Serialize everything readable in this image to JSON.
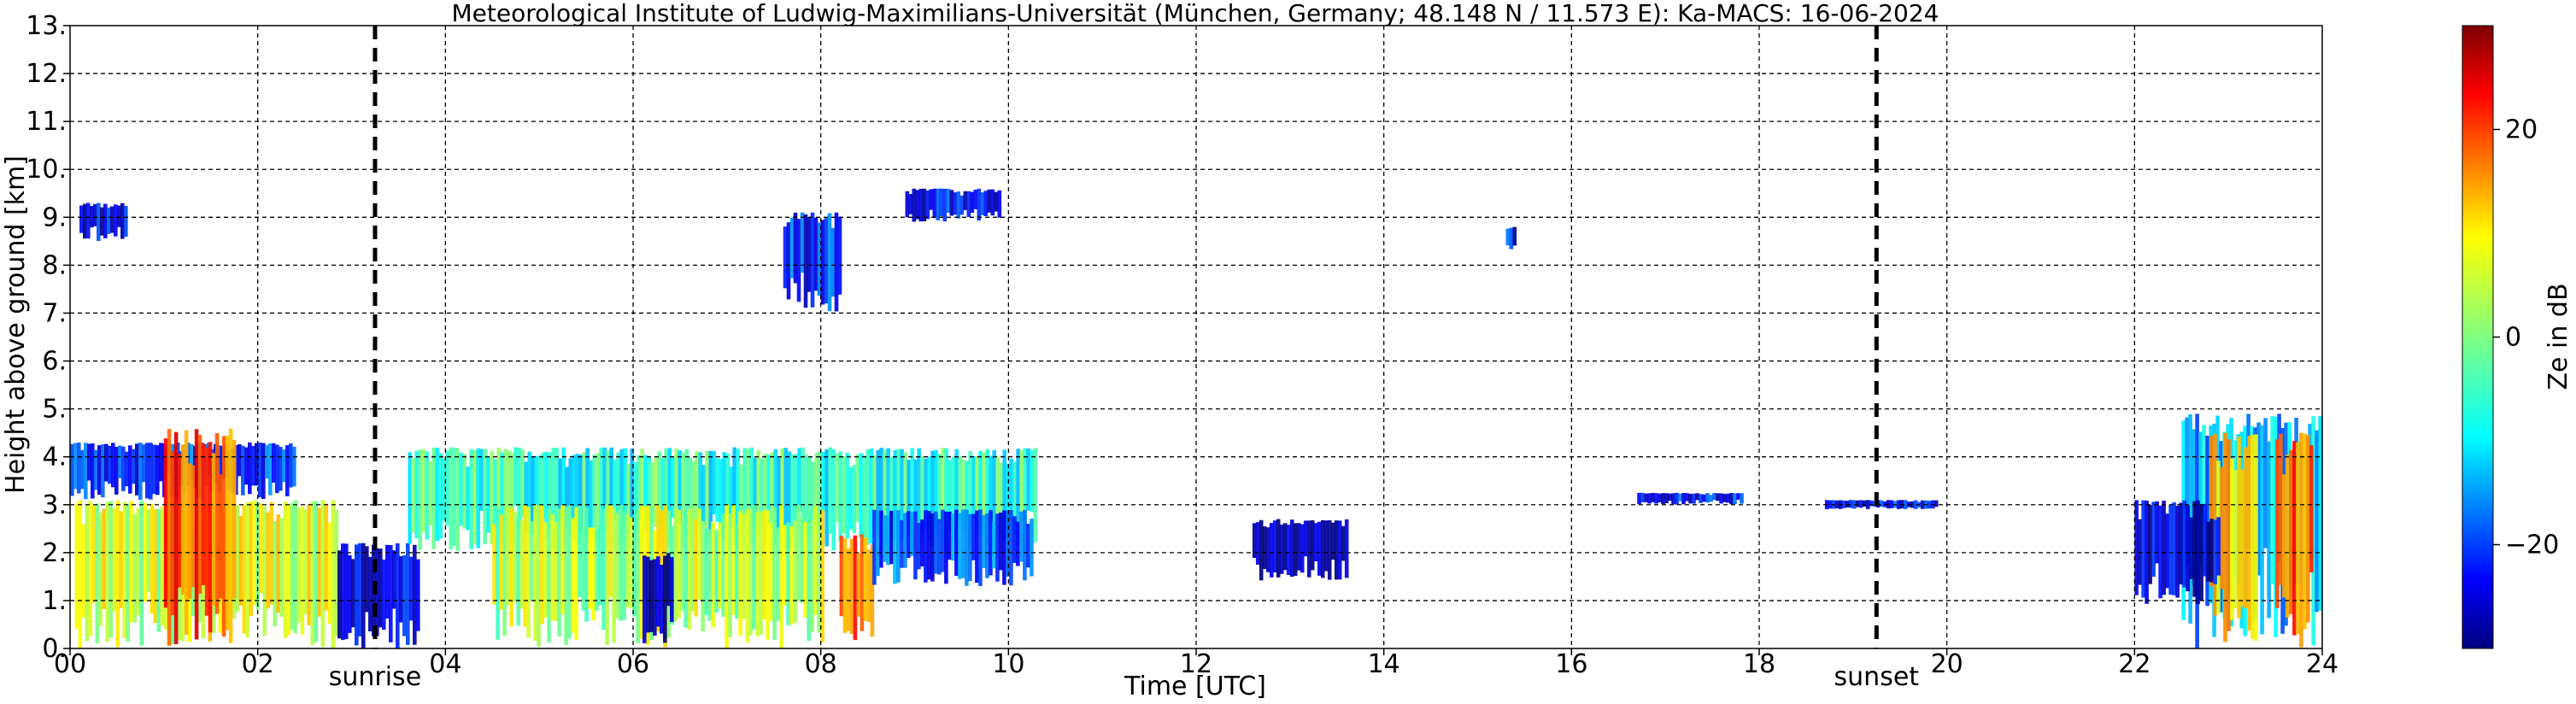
{
  "chart_data": {
    "type": "heatmap",
    "title": "Meteorological Institute of Ludwig-Maximilians-Universität (München, Germany; 48.148 N / 11.573 E):    Ka-MACS: 16-06-2024",
    "xlabel": "Time [UTC]",
    "ylabel": "Height above ground [km]",
    "xlim": [
      0,
      24
    ],
    "ylim": [
      0,
      13
    ],
    "x_ticks": [
      0,
      2,
      4,
      6,
      8,
      10,
      12,
      14,
      16,
      18,
      20,
      22,
      24
    ],
    "x_tick_labels": [
      "00",
      "02",
      "04",
      "06",
      "08",
      "10",
      "12",
      "14",
      "16",
      "18",
      "20",
      "22",
      "24"
    ],
    "y_ticks": [
      0,
      1,
      2,
      3,
      4,
      5,
      6,
      7,
      8,
      9,
      10,
      11,
      12,
      13
    ],
    "y_tick_labels": [
      "0.",
      "1.",
      "2.",
      "3.",
      "4.",
      "5.",
      "6.",
      "7.",
      "8.",
      "9.",
      "10.",
      "11.",
      "12.",
      "13."
    ],
    "grid": true,
    "events": [
      {
        "label": "sunrise",
        "x": 3.25
      },
      {
        "label": "sunset",
        "x": 19.25
      }
    ],
    "colorbar": {
      "label": "Ze in dB",
      "range": [
        -30,
        30
      ],
      "ticks": [
        -20,
        0,
        20
      ],
      "tick_labels": [
        "−20",
        "0",
        "20"
      ],
      "colormap": "jet"
    },
    "echo_regions": [
      {
        "x": [
          0.05,
          2.85
        ],
        "y": [
          0.0,
          3.1
        ],
        "ze": 5
      },
      {
        "x": [
          0.0,
          2.4
        ],
        "y": [
          3.1,
          4.3
        ],
        "ze": -20
      },
      {
        "x": [
          1.0,
          1.75
        ],
        "y": [
          0.0,
          4.6
        ],
        "ze": 18
      },
      {
        "x": [
          0.1,
          0.6
        ],
        "y": [
          8.5,
          9.3
        ],
        "ze": -23
      },
      {
        "x": [
          2.85,
          3.7
        ],
        "y": [
          0.0,
          2.2
        ],
        "ze": -25
      },
      {
        "x": [
          3.6,
          10.3
        ],
        "y": [
          2.0,
          4.2
        ],
        "ze": -5
      },
      {
        "x": [
          4.5,
          8.0
        ],
        "y": [
          0.0,
          3.0
        ],
        "ze": 3
      },
      {
        "x": [
          6.1,
          6.4
        ],
        "y": [
          0.0,
          2.0
        ],
        "ze": -28
      },
      {
        "x": [
          8.2,
          8.55
        ],
        "y": [
          0.0,
          2.4
        ],
        "ze": 15
      },
      {
        "x": [
          8.55,
          10.25
        ],
        "y": [
          1.3,
          2.9
        ],
        "ze": -18
      },
      {
        "x": [
          7.6,
          8.2
        ],
        "y": [
          7.0,
          9.1
        ],
        "ze": -20
      },
      {
        "x": [
          8.9,
          9.9
        ],
        "y": [
          8.9,
          9.6
        ],
        "ze": -22
      },
      {
        "x": [
          12.6,
          13.6
        ],
        "y": [
          1.4,
          2.7
        ],
        "ze": -28
      },
      {
        "x": [
          15.3,
          15.4
        ],
        "y": [
          8.3,
          8.8
        ],
        "ze": -22
      },
      {
        "x": [
          16.7,
          17.8
        ],
        "y": [
          3.0,
          3.25
        ],
        "ze": -22
      },
      {
        "x": [
          18.7,
          19.9
        ],
        "y": [
          2.9,
          3.1
        ],
        "ze": -22
      },
      {
        "x": [
          22.5,
          24.0
        ],
        "y": [
          0.0,
          4.9
        ],
        "ze": -12
      },
      {
        "x": [
          22.8,
          23.3
        ],
        "y": [
          0.0,
          4.5
        ],
        "ze": 10
      },
      {
        "x": [
          23.5,
          23.9
        ],
        "y": [
          0.0,
          4.5
        ],
        "ze": 18
      },
      {
        "x": [
          22.0,
          22.9
        ],
        "y": [
          0.9,
          3.1
        ],
        "ze": -26
      }
    ]
  }
}
